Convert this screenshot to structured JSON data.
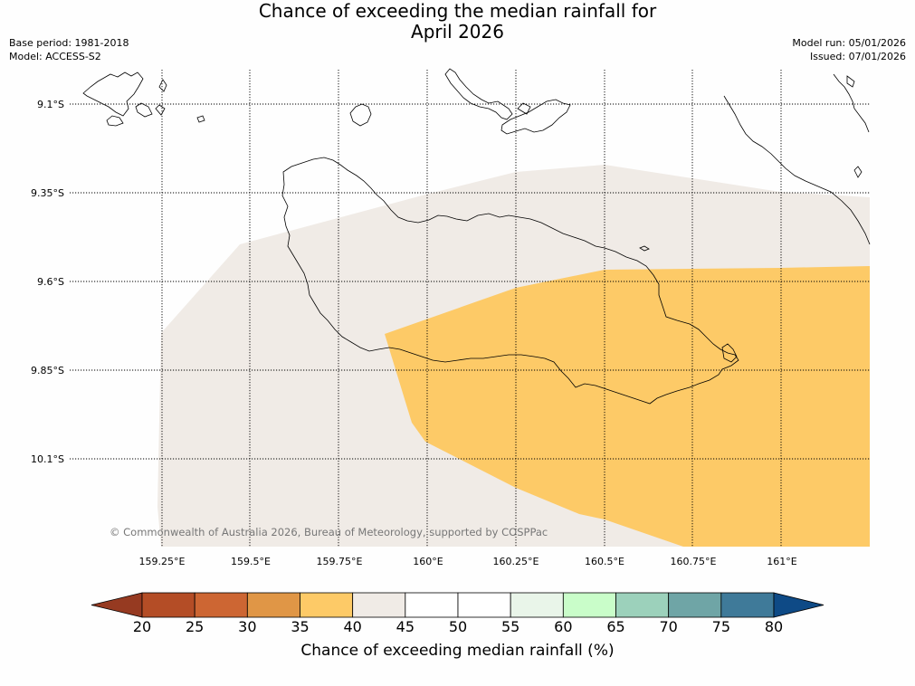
{
  "title_line1": "Chance of exceeding the median rainfall for",
  "title_line2": "April 2026",
  "base_period": "Base period: 1981-2018",
  "model": "Model: ACCESS-S2",
  "model_run": "Model run: 05/01/2026",
  "issued": "Issued: 07/01/2026",
  "copyright": "© Commonwealth of Australia 2026, Bureau of Meteorology, supported by COSPPac",
  "lat_labels": [
    "9.1°S",
    "9.35°S",
    "9.6°S",
    "9.85°S",
    "10.1°S"
  ],
  "lon_labels": [
    "159.25°E",
    "159.5°E",
    "159.75°E",
    "160°E",
    "160.25°E",
    "160.5°E",
    "160.75°E",
    "161°E"
  ],
  "colorbar": {
    "label": "Chance of exceeding median rainfall (%)",
    "ticks": [
      "20",
      "25",
      "30",
      "35",
      "40",
      "45",
      "50",
      "55",
      "60",
      "65",
      "70",
      "75",
      "80"
    ],
    "under_color": "#963a21",
    "over_color": "#0e4a86",
    "colors": [
      "#b44d26",
      "#cd6633",
      "#e09646",
      "#fdca67",
      "#f0ebe6",
      "#ffffff",
      "#ffffff",
      "#e9f5e9",
      "#c9fdc9",
      "#9cd1bb",
      "#6fa5a6",
      "#3f7a99"
    ]
  },
  "colors": {
    "region_40_45": "#f0ebe6",
    "region_35_40": "#fdca67"
  }
}
